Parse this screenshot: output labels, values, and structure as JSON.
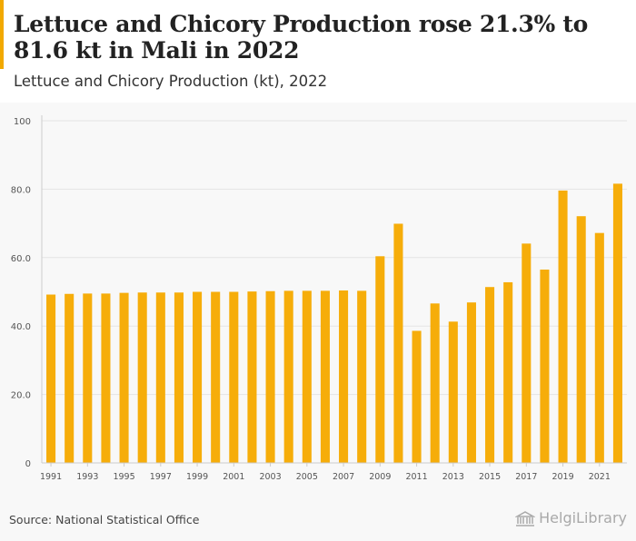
{
  "title": "Lettuce and Chicory Production rose 21.3% to 81.6 kt in Mali in 2022",
  "subtitle": "Lettuce and Chicory Production (kt), 2022",
  "source": "Source: National Statistical Office",
  "logo_text": "HelgiLibrary",
  "colors": {
    "bar": "#f6ad0a",
    "accent": "#f2a900",
    "grid": "#e4e4e4",
    "background": "#f8f8f8"
  },
  "chart_data": {
    "type": "bar",
    "title": "Lettuce and Chicory Production (kt), 2022",
    "xlabel": "",
    "ylabel": "",
    "ylim": [
      0,
      100
    ],
    "yticks": [
      0,
      20.0,
      40.0,
      60.0,
      80.0,
      100
    ],
    "ytick_labels": [
      "0",
      "20.0",
      "40.0",
      "60.0",
      "80.0",
      "100"
    ],
    "categories": [
      "1991",
      "1992",
      "1993",
      "1994",
      "1995",
      "1996",
      "1997",
      "1998",
      "1999",
      "2000",
      "2001",
      "2002",
      "2003",
      "2004",
      "2005",
      "2006",
      "2007",
      "2008",
      "2009",
      "2010",
      "2011",
      "2012",
      "2013",
      "2014",
      "2015",
      "2016",
      "2017",
      "2018",
      "2019",
      "2020",
      "2021",
      "2022"
    ],
    "xtick_labels": [
      "1991",
      "1993",
      "1995",
      "1997",
      "1999",
      "2001",
      "2003",
      "2005",
      "2007",
      "2009",
      "2011",
      "2013",
      "2015",
      "2017",
      "2019",
      "2021"
    ],
    "values": [
      49.2,
      49.4,
      49.5,
      49.5,
      49.7,
      49.8,
      49.8,
      49.8,
      50.0,
      50.0,
      50.0,
      50.1,
      50.2,
      50.3,
      50.3,
      50.3,
      50.4,
      50.3,
      60.4,
      69.9,
      38.6,
      46.6,
      41.3,
      46.9,
      51.4,
      52.8,
      64.1,
      56.5,
      79.6,
      72.1,
      67.2,
      81.6
    ],
    "grid": true,
    "legend": "none"
  }
}
